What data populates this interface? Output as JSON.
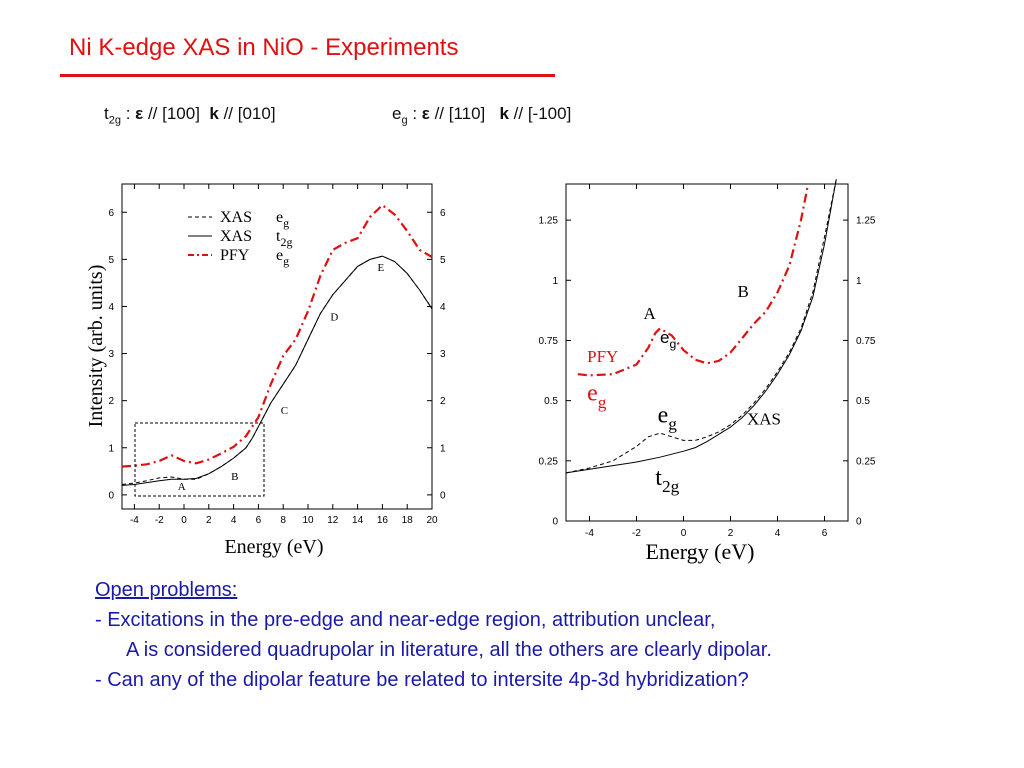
{
  "slide": {
    "title": "Ni K-edge XAS in NiO - Experiments",
    "accent_color": "#e01010",
    "text_color": "#1a1aa8"
  },
  "polarization": {
    "t2g": {
      "symbol": "t",
      "sub": "2g",
      "sep": " : ",
      "eps": "ε",
      "eps_dir": " // [100]  ",
      "k": "k",
      "k_dir": " // [010]"
    },
    "eg": {
      "symbol": "e",
      "sub": "g",
      "sep": " : ",
      "eps": "ε",
      "eps_dir": " // [110]   ",
      "k": "k",
      "k_dir": " // [-100]"
    }
  },
  "notes": {
    "heading": "Open problems:",
    "line1": "- Excitations in the pre-edge and near-edge region, attribution unclear,",
    "line2": "A is considered quadrupolar in literature, all the others are clearly dipolar.",
    "line3": "- Can any of the dipolar feature be related to intersite 4p-3d hybridization?"
  },
  "chart_data": [
    {
      "type": "line",
      "xlabel": "Energy (eV)",
      "ylabel": "Intensity (arb. units)",
      "xlim": [
        -5,
        20
      ],
      "ylim": [
        -0.3,
        6.6
      ],
      "xticks": [
        "-4",
        "-2",
        "0",
        "2",
        "4",
        "6",
        "8",
        "10",
        "12",
        "14",
        "16",
        "18",
        "20"
      ],
      "yticks": [
        "0",
        "1",
        "2",
        "3",
        "4",
        "5",
        "6"
      ],
      "legend": [
        {
          "label": "XAS",
          "sym": "e",
          "sub": "g",
          "style": "dashed",
          "color": "#000000"
        },
        {
          "label": "XAS",
          "sym": "t",
          "sub": "2g",
          "style": "solid",
          "color": "#000000"
        },
        {
          "label": "PFY",
          "sym": "e",
          "sub": "g",
          "style": "dashdot",
          "color": "#dd1111"
        }
      ],
      "annotations": [
        {
          "text": "A",
          "x": -0.5,
          "y": 0.1
        },
        {
          "text": "B",
          "x": 3.8,
          "y": 0.32
        },
        {
          "text": "C",
          "x": 7.8,
          "y": 1.72
        },
        {
          "text": "D",
          "x": 11.8,
          "y": 3.7
        },
        {
          "text": "E",
          "x": 15.6,
          "y": 4.75
        }
      ],
      "series": [
        {
          "style": "dashed",
          "color": "#000000",
          "x": [
            -5,
            -4,
            -3,
            -2,
            -1,
            0,
            1,
            2,
            3,
            4,
            5,
            5.5,
            6,
            7,
            8,
            9,
            10,
            11,
            12,
            13,
            14,
            15,
            16,
            17,
            18,
            19,
            20
          ],
          "y": [
            0.22,
            0.25,
            0.3,
            0.36,
            0.38,
            0.33,
            0.33,
            0.45,
            0.6,
            0.78,
            1.0,
            1.2,
            1.45,
            1.95,
            2.35,
            2.75,
            3.3,
            3.85,
            4.25,
            4.55,
            4.85,
            5.0,
            5.07,
            4.95,
            4.7,
            4.35,
            3.95
          ]
        },
        {
          "style": "solid",
          "color": "#000000",
          "x": [
            -5,
            -4,
            -3,
            -2,
            -1,
            0,
            1,
            2,
            3,
            4,
            5,
            5.5,
            6,
            7,
            8,
            9,
            10,
            11,
            12,
            13,
            14,
            15,
            16,
            17,
            18,
            19,
            20
          ],
          "y": [
            0.2,
            0.22,
            0.26,
            0.3,
            0.33,
            0.33,
            0.35,
            0.45,
            0.6,
            0.78,
            1.0,
            1.2,
            1.45,
            1.95,
            2.35,
            2.75,
            3.3,
            3.85,
            4.25,
            4.55,
            4.85,
            5.0,
            5.07,
            4.95,
            4.7,
            4.35,
            3.95
          ]
        },
        {
          "name": "PFY",
          "style": "dashdot",
          "color": "#dd1111",
          "x": [
            -5,
            -4,
            -3,
            -2,
            -1,
            0,
            1,
            2,
            3,
            4,
            5,
            6,
            7,
            8,
            9,
            10,
            11,
            12,
            13,
            14,
            15,
            16,
            17,
            18,
            19,
            20
          ],
          "y": [
            0.6,
            0.62,
            0.65,
            0.72,
            0.84,
            0.72,
            0.67,
            0.75,
            0.88,
            1.02,
            1.25,
            1.65,
            2.35,
            2.95,
            3.3,
            3.9,
            4.65,
            5.2,
            5.35,
            5.45,
            5.9,
            6.15,
            5.95,
            5.6,
            5.2,
            5.05
          ]
        }
      ]
    },
    {
      "type": "line",
      "xlabel": "Energy (eV)",
      "xlim": [
        -5,
        7
      ],
      "ylim": [
        0,
        1.4
      ],
      "xticks": [
        "-4",
        "-2",
        "0",
        "2",
        "4",
        "6"
      ],
      "yticks": [
        "0",
        "0.25",
        "0.5",
        "0.75",
        "1",
        "1.25"
      ],
      "annotations": [
        {
          "text": "A",
          "x": -1.7,
          "y": 0.84,
          "color": "#000000"
        },
        {
          "text": "B",
          "x": 2.3,
          "y": 0.93,
          "color": "#000000"
        },
        {
          "text": "XAS",
          "x": 2.7,
          "y": 0.4,
          "color": "#000000"
        },
        {
          "text": "PFY",
          "x": -4.1,
          "y": 0.66,
          "color": "#dd1111"
        }
      ],
      "labels": [
        {
          "sym": "e",
          "sub": "g",
          "x": -1.0,
          "y": 0.74,
          "color": "#000000",
          "small": true
        },
        {
          "sym": "e",
          "sub": "g",
          "x": -4.1,
          "y": 0.5,
          "color": "#dd1111",
          "small": false
        },
        {
          "sym": "e",
          "sub": "g",
          "x": -1.1,
          "y": 0.41,
          "color": "#000000",
          "small": false
        },
        {
          "sym": "t",
          "sub": "2g",
          "x": -1.2,
          "y": 0.15,
          "color": "#000000",
          "small": false
        }
      ],
      "series": [
        {
          "style": "dashed",
          "color": "#000000",
          "x": [
            -5,
            -4,
            -3,
            -2,
            -1.5,
            -1,
            -0.5,
            0,
            0.5,
            1,
            1.5,
            2,
            2.5,
            3,
            3.5,
            4,
            4.5,
            5,
            5.5,
            6,
            6.5
          ],
          "y": [
            0.2,
            0.22,
            0.25,
            0.31,
            0.35,
            0.365,
            0.35,
            0.335,
            0.335,
            0.35,
            0.37,
            0.4,
            0.44,
            0.49,
            0.55,
            0.62,
            0.7,
            0.8,
            0.95,
            1.18,
            1.42
          ]
        },
        {
          "style": "solid",
          "color": "#000000",
          "x": [
            -5,
            -4,
            -3,
            -2,
            -1,
            0,
            0.5,
            1,
            1.5,
            2,
            2.5,
            3,
            3.5,
            4,
            4.5,
            5,
            5.5,
            6,
            6.5
          ],
          "y": [
            0.2,
            0.215,
            0.23,
            0.245,
            0.265,
            0.29,
            0.305,
            0.33,
            0.36,
            0.39,
            0.43,
            0.48,
            0.54,
            0.61,
            0.69,
            0.79,
            0.93,
            1.15,
            1.42
          ]
        },
        {
          "name": "PFY",
          "style": "dashdot",
          "color": "#dd1111",
          "x": [
            -4.5,
            -4,
            -3,
            -2,
            -1.5,
            -1.2,
            -1,
            -0.5,
            0,
            0.5,
            1,
            1.5,
            2,
            2.5,
            3,
            3.5,
            4,
            4.5,
            5,
            5.3
          ],
          "y": [
            0.61,
            0.605,
            0.61,
            0.65,
            0.72,
            0.78,
            0.8,
            0.77,
            0.71,
            0.67,
            0.655,
            0.665,
            0.7,
            0.76,
            0.82,
            0.87,
            0.95,
            1.06,
            1.25,
            1.4
          ]
        }
      ]
    }
  ]
}
